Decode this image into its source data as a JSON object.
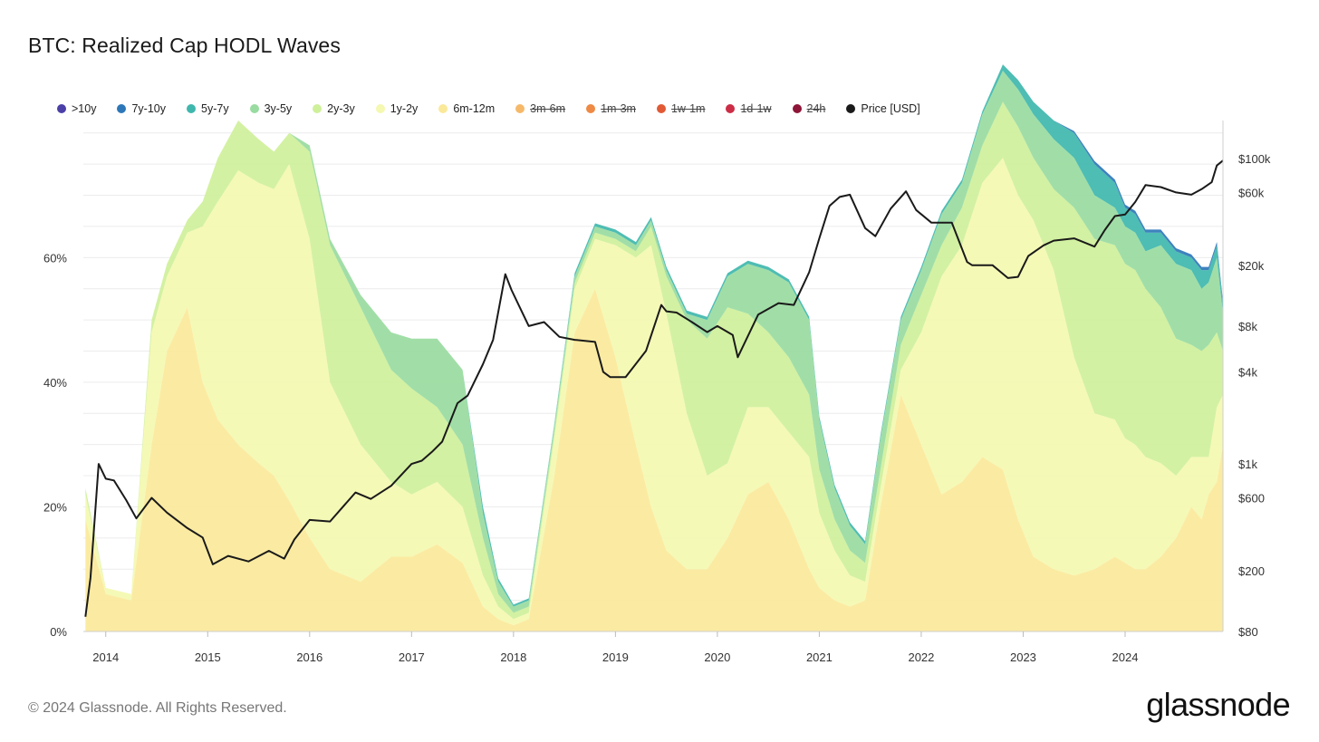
{
  "title": "BTC: Realized Cap HODL Waves",
  "footer": {
    "copyright": "© 2024 Glassnode. All Rights Reserved.",
    "brand": "glassnode"
  },
  "legend": [
    {
      "label": ">10y",
      "color": "#4b3fa8",
      "enabled": true
    },
    {
      "label": "7y-10y",
      "color": "#2d77b8",
      "enabled": true
    },
    {
      "label": "5y-7y",
      "color": "#3fb7ad",
      "enabled": true
    },
    {
      "label": "3y-5y",
      "color": "#99dba0",
      "enabled": true
    },
    {
      "label": "2y-3y",
      "color": "#cff09a",
      "enabled": true
    },
    {
      "label": "1y-2y",
      "color": "#f4f8b0",
      "enabled": true
    },
    {
      "label": "6m-12m",
      "color": "#fbe99a",
      "enabled": true
    },
    {
      "label": "3m-6m",
      "color": "#f6b96a",
      "enabled": false
    },
    {
      "label": "1m-3m",
      "color": "#ee8a45",
      "enabled": false
    },
    {
      "label": "1w-1m",
      "color": "#e15a35",
      "enabled": false
    },
    {
      "label": "1d-1w",
      "color": "#cc2d46",
      "enabled": false
    },
    {
      "label": "24h",
      "color": "#8e1538",
      "enabled": false
    },
    {
      "label": "Price [USD]",
      "color": "#1a1a1a",
      "enabled": true
    }
  ],
  "chart_data": {
    "type": "area",
    "stacked": true,
    "title": "BTC: Realized Cap HODL Waves",
    "x_ticks": [
      "2014",
      "2015",
      "2016",
      "2017",
      "2018",
      "2019",
      "2020",
      "2021",
      "2022",
      "2023",
      "2024"
    ],
    "x_range": [
      2013.78,
      2024.96
    ],
    "y_left": {
      "ticks": [
        "0%",
        "20%",
        "40%",
        "60%"
      ],
      "tick_values": [
        0,
        20,
        40,
        60
      ],
      "range": [
        0,
        82
      ]
    },
    "y_right": {
      "scale": "log",
      "ticks": [
        "$80",
        "$200",
        "$600",
        "$1k",
        "$4k",
        "$8k",
        "$20k",
        "$60k",
        "$100k"
      ],
      "tick_values": [
        80,
        200,
        600,
        1000,
        4000,
        8000,
        20000,
        60000,
        100000
      ]
    },
    "x": [
      2013.8,
      2014.0,
      2014.25,
      2014.45,
      2014.6,
      2014.8,
      2014.95,
      2015.1,
      2015.3,
      2015.5,
      2015.65,
      2015.8,
      2016.0,
      2016.2,
      2016.5,
      2016.8,
      2017.0,
      2017.25,
      2017.5,
      2017.7,
      2017.85,
      2018.0,
      2018.15,
      2018.4,
      2018.6,
      2018.8,
      2019.0,
      2019.2,
      2019.35,
      2019.5,
      2019.7,
      2019.9,
      2020.1,
      2020.3,
      2020.5,
      2020.7,
      2020.9,
      2021.0,
      2021.15,
      2021.3,
      2021.45,
      2021.6,
      2021.8,
      2022.0,
      2022.2,
      2022.4,
      2022.6,
      2022.8,
      2022.95,
      2023.1,
      2023.3,
      2023.5,
      2023.7,
      2023.9,
      2024.0,
      2024.1,
      2024.2,
      2024.35,
      2024.5,
      2024.65,
      2024.75,
      2024.82,
      2024.9,
      2024.96
    ],
    "series": [
      {
        "name": "6m-12m",
        "values": [
          18,
          6,
          5,
          30,
          45,
          52,
          40,
          34,
          30,
          27,
          25,
          21,
          15,
          10,
          8,
          12,
          12,
          14,
          11,
          4,
          2,
          1,
          2,
          25,
          48,
          55,
          44,
          30,
          20,
          13,
          10,
          10,
          15,
          22,
          24,
          18,
          10,
          7,
          5,
          4,
          5,
          20,
          38,
          30,
          22,
          24,
          28,
          26,
          18,
          12,
          10,
          9,
          10,
          12,
          11,
          10,
          10,
          12,
          15,
          20,
          18,
          22,
          24,
          30
        ]
      },
      {
        "name": "1y-2y",
        "values": [
          4,
          1,
          1,
          18,
          12,
          12,
          25,
          35,
          44,
          45,
          46,
          54,
          48,
          30,
          22,
          12,
          10,
          10,
          9,
          5,
          2,
          1,
          1,
          6,
          7,
          8,
          18,
          30,
          42,
          38,
          25,
          15,
          12,
          14,
          12,
          14,
          18,
          12,
          8,
          5,
          3,
          3,
          4,
          18,
          35,
          38,
          44,
          50,
          52,
          54,
          48,
          35,
          25,
          22,
          20,
          20,
          18,
          15,
          10,
          8,
          10,
          6,
          12,
          8
        ]
      },
      {
        "name": "2y-3y",
        "values": [
          1,
          0,
          0,
          2,
          2,
          2,
          4,
          7,
          8,
          7,
          6,
          5,
          14,
          22,
          22,
          18,
          17,
          12,
          10,
          6,
          2,
          1,
          1,
          1,
          1,
          1,
          1,
          1,
          3,
          6,
          15,
          22,
          25,
          15,
          12,
          12,
          10,
          7,
          5,
          4,
          3,
          3,
          4,
          6,
          5,
          6,
          6,
          9,
          11,
          10,
          13,
          24,
          28,
          28,
          28,
          28,
          27,
          25,
          22,
          18,
          17,
          18,
          12,
          7
        ]
      },
      {
        "name": "3y-5y",
        "values": [
          0,
          0,
          0,
          0,
          0,
          0,
          0,
          0,
          0,
          0,
          0,
          0,
          1,
          1,
          2,
          6,
          8,
          11,
          12,
          4,
          2,
          1,
          1,
          1,
          1,
          1,
          1,
          1,
          1,
          1,
          1,
          3,
          5,
          8,
          10,
          12,
          12,
          8,
          5,
          4,
          3,
          5,
          4,
          4,
          5,
          4,
          5,
          5,
          6,
          7,
          8,
          8,
          7,
          6,
          6,
          6,
          6,
          10,
          12,
          12,
          10,
          10,
          12,
          6
        ]
      },
      {
        "name": "5y-7y",
        "values": [
          0,
          0,
          0,
          0,
          0,
          0,
          0,
          0,
          0,
          0,
          0,
          0,
          0,
          0,
          0,
          0,
          0,
          0,
          0,
          1,
          0.5,
          0.3,
          0.3,
          0.3,
          0.5,
          0.5,
          0.5,
          0.5,
          0.5,
          0.5,
          0.5,
          0.5,
          0.5,
          0.5,
          0.5,
          0.5,
          0.5,
          0.5,
          0.5,
          0.5,
          0.5,
          0.5,
          0.5,
          0.5,
          0.5,
          0.5,
          0.5,
          1,
          1.5,
          2,
          3,
          4,
          5,
          4,
          3,
          3,
          3,
          2,
          2,
          2,
          3,
          2,
          2,
          1.5
        ]
      },
      {
        "name": "7y-10y",
        "values": [
          0,
          0,
          0,
          0,
          0,
          0,
          0,
          0,
          0,
          0,
          0,
          0,
          0,
          0,
          0,
          0,
          0,
          0,
          0,
          0,
          0,
          0,
          0,
          0,
          0,
          0,
          0,
          0,
          0,
          0,
          0,
          0,
          0,
          0,
          0,
          0,
          0,
          0,
          0,
          0,
          0,
          0,
          0,
          0,
          0,
          0,
          0,
          0,
          0,
          0,
          0,
          0.3,
          0.5,
          0.5,
          0.5,
          0.5,
          0.5,
          0.5,
          0.5,
          0.5,
          0.5,
          0.5,
          0.5,
          0.5
        ]
      },
      {
        "name": "Price [USD]",
        "axis": "right",
        "x": [
          2013.8,
          2013.85,
          2013.93,
          2014.0,
          2014.08,
          2014.2,
          2014.3,
          2014.45,
          2014.6,
          2014.8,
          2014.95,
          2015.05,
          2015.2,
          2015.4,
          2015.6,
          2015.75,
          2015.85,
          2016.0,
          2016.2,
          2016.45,
          2016.6,
          2016.8,
          2017.0,
          2017.1,
          2017.2,
          2017.3,
          2017.45,
          2017.55,
          2017.7,
          2017.8,
          2017.92,
          2017.98,
          2018.05,
          2018.15,
          2018.3,
          2018.45,
          2018.6,
          2018.8,
          2018.88,
          2018.95,
          2019.1,
          2019.3,
          2019.45,
          2019.5,
          2019.6,
          2019.75,
          2019.9,
          2020.0,
          2020.15,
          2020.2,
          2020.4,
          2020.6,
          2020.75,
          2020.9,
          2021.0,
          2021.1,
          2021.2,
          2021.3,
          2021.45,
          2021.55,
          2021.7,
          2021.85,
          2021.95,
          2022.1,
          2022.3,
          2022.45,
          2022.5,
          2022.7,
          2022.85,
          2022.95,
          2023.05,
          2023.2,
          2023.3,
          2023.5,
          2023.7,
          2023.8,
          2023.9,
          2024.0,
          2024.1,
          2024.2,
          2024.35,
          2024.5,
          2024.65,
          2024.75,
          2024.85,
          2024.9,
          2024.96
        ],
        "values": [
          100,
          180,
          1000,
          800,
          780,
          580,
          440,
          600,
          480,
          380,
          330,
          220,
          250,
          230,
          270,
          240,
          320,
          430,
          420,
          650,
          590,
          720,
          1000,
          1050,
          1200,
          1400,
          2500,
          2800,
          4500,
          6500,
          17500,
          13800,
          11000,
          8000,
          8500,
          6800,
          6500,
          6300,
          4000,
          3700,
          3700,
          5500,
          11000,
          10000,
          9800,
          8500,
          7300,
          8000,
          7000,
          5000,
          9500,
          11300,
          11000,
          18000,
          30000,
          49000,
          56000,
          58000,
          35000,
          31000,
          47000,
          61000,
          46000,
          38000,
          38000,
          21000,
          20000,
          20000,
          16500,
          16800,
          23000,
          27000,
          29000,
          30000,
          26500,
          34000,
          42000,
          43000,
          52000,
          67000,
          65000,
          60000,
          58000,
          63000,
          70000,
          90000,
          97000
        ]
      }
    ]
  }
}
